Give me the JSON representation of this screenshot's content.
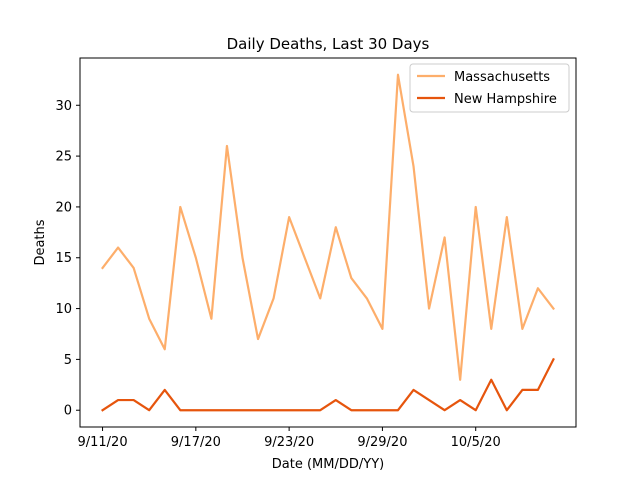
{
  "chart_data": {
    "type": "line",
    "title": "Daily Deaths, Last 30 Days",
    "xlabel": "Date (MM/DD/YY)",
    "ylabel": "Deaths",
    "x": [
      "9/11/20",
      "9/12/20",
      "9/13/20",
      "9/14/20",
      "9/15/20",
      "9/16/20",
      "9/17/20",
      "9/18/20",
      "9/19/20",
      "9/20/20",
      "9/21/20",
      "9/22/20",
      "9/23/20",
      "9/24/20",
      "9/25/20",
      "9/26/20",
      "9/27/20",
      "9/28/20",
      "9/29/20",
      "9/30/20",
      "10/1/20",
      "10/2/20",
      "10/3/20",
      "10/4/20",
      "10/5/20",
      "10/6/20",
      "10/7/20",
      "10/8/20",
      "10/9/20",
      "10/10/20"
    ],
    "x_tick_labels": [
      "9/11/20",
      "9/17/20",
      "9/23/20",
      "9/29/20",
      "10/5/20"
    ],
    "y_ticks": [
      0,
      5,
      10,
      15,
      20,
      25,
      30
    ],
    "ylim": [
      -1.65,
      34.65
    ],
    "grid": false,
    "legend_position": "top-right",
    "series": [
      {
        "name": "Massachusetts",
        "color": "#fdae6b",
        "values": [
          14,
          16,
          14,
          9,
          6,
          20,
          15,
          9,
          26,
          15,
          7,
          11,
          19,
          15,
          11,
          18,
          13,
          11,
          8,
          33,
          24,
          10,
          17,
          3,
          20,
          8,
          19,
          8,
          12,
          10
        ]
      },
      {
        "name": "New Hampshire",
        "color": "#e6550d",
        "values": [
          0,
          1,
          1,
          0,
          2,
          0,
          0,
          0,
          0,
          0,
          0,
          0,
          0,
          0,
          0,
          1,
          0,
          0,
          0,
          0,
          2,
          1,
          0,
          1,
          0,
          3,
          0,
          2,
          2,
          5
        ]
      }
    ]
  }
}
